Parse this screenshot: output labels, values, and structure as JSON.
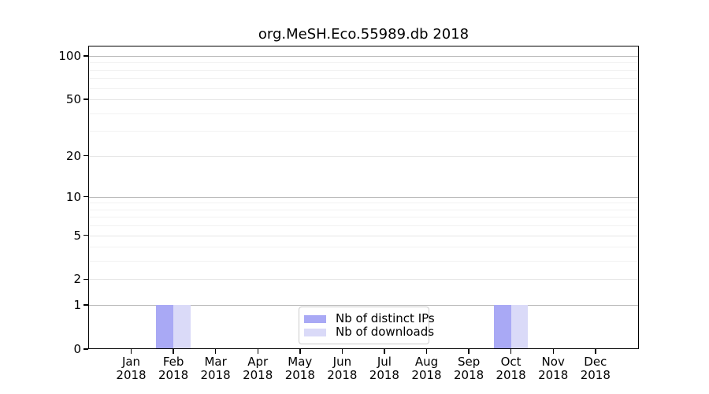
{
  "title": "org.MeSH.Eco.55989.db 2018",
  "colors": {
    "distinct_ips_bar": "#a9a9f5",
    "downloads_bar": "#dadaf8",
    "grid_power10": "#b9b9b9",
    "grid_labeled": "#e6e6e6",
    "grid_minor": "#f2f2f2",
    "axis_frame": "#000000"
  },
  "chart_data": {
    "type": "bar",
    "title": "org.MeSH.Eco.55989.db 2018",
    "months": [
      "Jan",
      "Feb",
      "Mar",
      "Apr",
      "May",
      "Jun",
      "Jul",
      "Aug",
      "Sep",
      "Oct",
      "Nov",
      "Dec"
    ],
    "year_label": "2018",
    "categories": [
      "Jan 2018",
      "Feb 2018",
      "Mar 2018",
      "Apr 2018",
      "May 2018",
      "Jun 2018",
      "Jul 2018",
      "Aug 2018",
      "Sep 2018",
      "Oct 2018",
      "Nov 2018",
      "Dec 2018"
    ],
    "series": [
      {
        "name": "Nb of distinct IPs",
        "color": "#a9a9f5",
        "values": [
          0,
          1,
          0,
          0,
          0,
          0,
          0,
          0,
          0,
          1,
          0,
          0
        ]
      },
      {
        "name": "Nb of downloads",
        "color": "#dadaf8",
        "values": [
          0,
          1,
          0,
          0,
          0,
          0,
          0,
          0,
          0,
          1,
          0,
          0
        ]
      }
    ],
    "y_scale": "log1p",
    "y_ticks": [
      0,
      1,
      2,
      5,
      10,
      20,
      50,
      100
    ],
    "y_minor_ticks": [
      3,
      4,
      6,
      7,
      8,
      9,
      30,
      40,
      60,
      70,
      80,
      90
    ],
    "ylim": [
      0,
      117.6
    ],
    "grid": "horizontal-both",
    "legend_position": "lower-center-inside"
  }
}
